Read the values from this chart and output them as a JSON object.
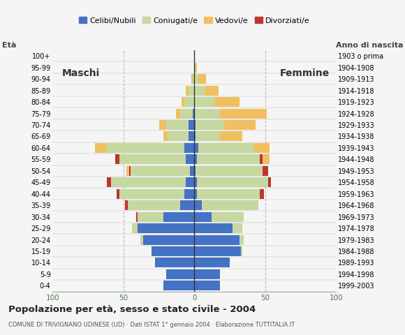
{
  "age_groups": [
    "0-4",
    "5-9",
    "10-14",
    "15-19",
    "20-24",
    "25-29",
    "30-34",
    "35-39",
    "40-44",
    "45-49",
    "50-54",
    "55-59",
    "60-64",
    "65-69",
    "70-74",
    "75-79",
    "80-84",
    "85-89",
    "90-94",
    "95-99",
    "100+"
  ],
  "birth_years": [
    "1999-2003",
    "1994-1998",
    "1989-1993",
    "1984-1988",
    "1979-1983",
    "1974-1978",
    "1969-1973",
    "1964-1968",
    "1959-1963",
    "1954-1958",
    "1949-1953",
    "1944-1948",
    "1939-1943",
    "1934-1938",
    "1929-1933",
    "1924-1928",
    "1919-1923",
    "1914-1918",
    "1909-1913",
    "1904-1908",
    "1903 o prima"
  ],
  "colors": {
    "celibe": "#4472c4",
    "coniugato": "#c5d8a0",
    "vedovo": "#f0c060",
    "divorziato": "#c0342c"
  },
  "maschi": {
    "celibe": [
      22,
      20,
      28,
      30,
      36,
      40,
      22,
      10,
      7,
      6,
      3,
      6,
      7,
      4,
      4,
      1,
      0,
      0,
      0,
      0,
      0
    ],
    "coniugato": [
      0,
      0,
      0,
      0,
      2,
      4,
      18,
      37,
      46,
      53,
      42,
      47,
      55,
      15,
      16,
      9,
      7,
      4,
      1,
      0,
      0
    ],
    "vedovo": [
      0,
      0,
      0,
      0,
      0,
      0,
      0,
      0,
      1,
      2,
      3,
      2,
      8,
      3,
      5,
      3,
      2,
      2,
      1,
      0,
      0
    ],
    "divorziato": [
      0,
      0,
      0,
      0,
      0,
      0,
      1,
      2,
      2,
      3,
      1,
      3,
      0,
      0,
      0,
      0,
      0,
      0,
      0,
      0,
      0
    ]
  },
  "femmine": {
    "celibe": [
      18,
      18,
      25,
      33,
      32,
      27,
      12,
      5,
      2,
      2,
      1,
      2,
      3,
      1,
      1,
      0,
      0,
      0,
      0,
      0,
      0
    ],
    "coniugato": [
      0,
      0,
      0,
      1,
      3,
      7,
      23,
      40,
      44,
      50,
      47,
      44,
      39,
      17,
      20,
      18,
      14,
      7,
      3,
      1,
      0
    ],
    "vedovo": [
      0,
      0,
      0,
      0,
      0,
      0,
      0,
      0,
      0,
      2,
      2,
      7,
      11,
      16,
      22,
      33,
      18,
      10,
      5,
      1,
      0
    ],
    "divorziato": [
      0,
      0,
      0,
      0,
      0,
      0,
      0,
      0,
      3,
      2,
      4,
      2,
      0,
      0,
      0,
      0,
      0,
      0,
      0,
      0,
      0
    ]
  },
  "title": "Popolazione per età, sesso e stato civile - 2004",
  "subtitle": "COMUNE DI TRIVIGNANO UDINESE (UD) · Dati ISTAT 1° gennaio 2004 · Elaborazione TUTTITALIA.IT",
  "ylabel_left": "Età",
  "ylabel_right": "Anno di nascita",
  "label_maschi": "Maschi",
  "label_femmine": "Femmine",
  "legend_labels": [
    "Celibi/Nubili",
    "Coniugati/e",
    "Vedovi/e",
    "Divorziati/e"
  ],
  "xlim": 100,
  "background_color": "#f5f5f5",
  "grid_color": "#bbbbbb",
  "bar_height": 0.85
}
